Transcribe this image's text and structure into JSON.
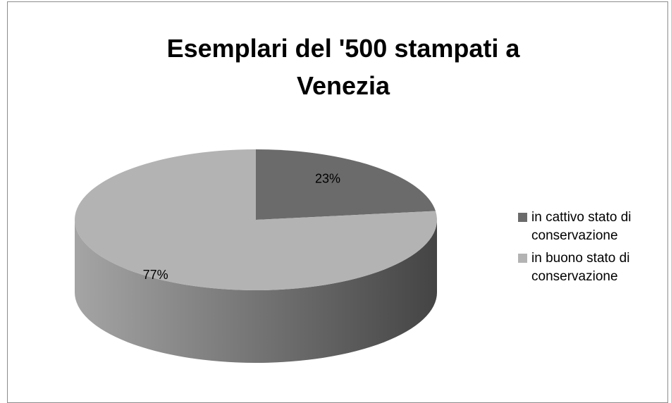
{
  "chart_data": {
    "type": "pie3d",
    "title": "Esemplari del '500 stampati a Venezia",
    "categories": [
      "in cattivo stato di conservazione",
      "in buono stato di conservazione"
    ],
    "values": [
      23,
      77
    ],
    "value_labels": [
      "23%",
      "77%"
    ],
    "colors": [
      "#6b6b6b",
      "#b3b3b3"
    ],
    "legend": "right"
  }
}
